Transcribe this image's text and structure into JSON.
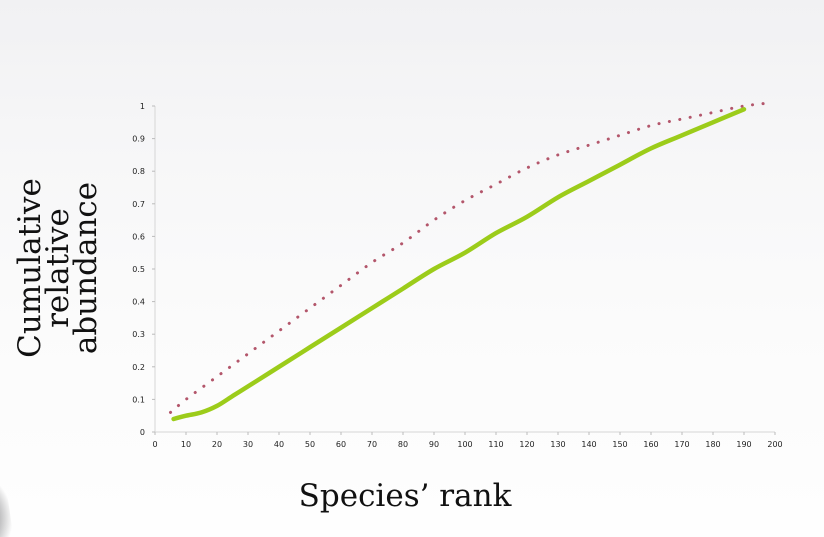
{
  "chart_data": {
    "type": "line",
    "xlabel": "Species’ rank",
    "ylabel_lines": [
      "Cumulative",
      "relative",
      "abundance"
    ],
    "xlim": [
      0,
      200
    ],
    "ylim": [
      0,
      1
    ],
    "x_ticks": [
      "0",
      "10",
      "20",
      "30",
      "40",
      "50",
      "60",
      "70",
      "80",
      "90",
      "100",
      "110",
      "120",
      "130",
      "140",
      "150",
      "160",
      "170",
      "180",
      "190",
      "200"
    ],
    "y_ticks": [
      "0",
      "0.1",
      "0.2",
      "0.3",
      "0.4",
      "0.5",
      "0.6",
      "0.7",
      "0.8",
      "0.9",
      "1"
    ],
    "grid": false,
    "series": [
      {
        "style": "dotted",
        "color": "#b3566b",
        "x": [
          5,
          10,
          20,
          30,
          40,
          50,
          60,
          70,
          80,
          90,
          100,
          110,
          120,
          130,
          140,
          150,
          160,
          170,
          180,
          190,
          199
        ],
        "y": [
          0.06,
          0.1,
          0.17,
          0.24,
          0.31,
          0.38,
          0.45,
          0.52,
          0.58,
          0.65,
          0.71,
          0.76,
          0.81,
          0.85,
          0.88,
          0.91,
          0.94,
          0.96,
          0.98,
          1.0,
          1.01
        ]
      },
      {
        "style": "solid",
        "color": "#9ccc1a",
        "x": [
          6,
          10,
          15,
          20,
          25,
          30,
          40,
          50,
          60,
          70,
          80,
          90,
          100,
          110,
          120,
          130,
          140,
          150,
          160,
          170,
          180,
          190
        ],
        "y": [
          0.04,
          0.05,
          0.06,
          0.08,
          0.11,
          0.14,
          0.2,
          0.26,
          0.32,
          0.38,
          0.44,
          0.5,
          0.55,
          0.61,
          0.66,
          0.72,
          0.77,
          0.82,
          0.87,
          0.91,
          0.95,
          0.99
        ]
      }
    ]
  }
}
